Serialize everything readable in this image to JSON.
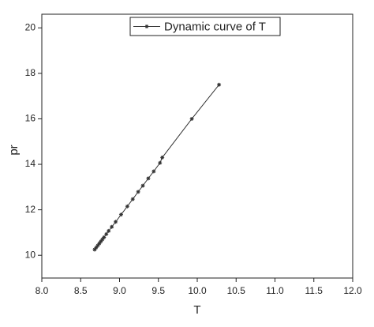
{
  "chart_data": {
    "type": "line",
    "xlabel": "T",
    "ylabel": "pr",
    "x": [
      8.68,
      8.7,
      8.72,
      8.74,
      8.76,
      8.78,
      8.8,
      8.83,
      8.86,
      8.9,
      8.95,
      9.02,
      9.1,
      9.17,
      9.24,
      9.3,
      9.37,
      9.44,
      9.52,
      9.55,
      9.93,
      10.28
    ],
    "series": [
      {
        "name": "Dynamic curve of T",
        "color": "#333333",
        "values": [
          10.25,
          10.34,
          10.43,
          10.52,
          10.61,
          10.7,
          10.79,
          10.93,
          11.07,
          11.25,
          11.47,
          11.79,
          12.15,
          12.47,
          12.79,
          13.06,
          13.38,
          13.69,
          14.06,
          14.3,
          16.0,
          17.5
        ]
      }
    ],
    "xlim": [
      8,
      12
    ],
    "xticks": [
      {
        "value": 8,
        "label": "8.0"
      },
      {
        "value": 8.5,
        "label": "8.5"
      },
      {
        "value": 9,
        "label": "9.0"
      },
      {
        "value": 9.5,
        "label": "9.5"
      },
      {
        "value": 10,
        "label": "10.0"
      },
      {
        "value": 10.5,
        "label": "10.5"
      },
      {
        "value": 11,
        "label": "11.0"
      },
      {
        "value": 11.5,
        "label": "11.5"
      },
      {
        "value": 12,
        "label": "12.0"
      }
    ],
    "ylim": [
      9,
      20.6
    ],
    "yticks": [
      10,
      12,
      14,
      16,
      18,
      20
    ],
    "grid": false,
    "legend": "top-center"
  }
}
